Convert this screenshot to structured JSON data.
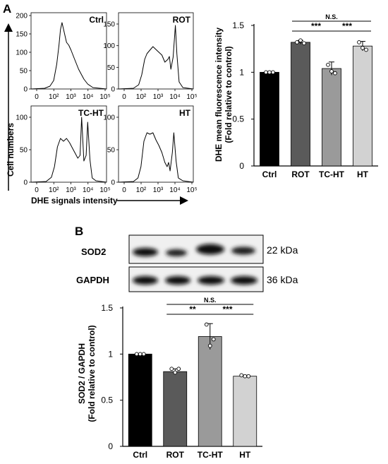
{
  "panel_a_label": "A",
  "panel_b_label": "B",
  "flow": {
    "y_axis_label": "Cell numbers",
    "x_axis_label": "DHE signals intensity",
    "x_ticks": [
      "0",
      "10²",
      "10³",
      "10⁴",
      "10⁵"
    ],
    "panels": [
      {
        "title": "Ctrl",
        "yticks": [
          "0",
          "50",
          "100",
          "150",
          "200"
        ]
      },
      {
        "title": "ROT",
        "yticks": [
          "0",
          "50",
          "100",
          "150"
        ]
      },
      {
        "title": "TC-HT",
        "yticks": [
          "0",
          "50",
          "100"
        ]
      },
      {
        "title": "HT",
        "yticks": [
          "0",
          "50",
          "100"
        ]
      }
    ]
  },
  "western": {
    "rows": [
      {
        "label": "SOD2",
        "kda": "22 kDa"
      },
      {
        "label": "GAPDH",
        "kda": "36 kDa"
      }
    ]
  },
  "chart_data": [
    {
      "type": "bar",
      "title": "",
      "ylabel": "DHE mean fluorescence intensity\n(Fold relative to control)",
      "ylabel_line1": "DHE mean fluorescence intensity",
      "ylabel_line2": "(Fold relative to control)",
      "categories": [
        "Ctrl",
        "ROT",
        "TC-HT",
        "HT"
      ],
      "values": [
        1.0,
        1.32,
        1.04,
        1.28
      ],
      "errors": [
        0.01,
        0.02,
        0.07,
        0.05
      ],
      "points": [
        [
          1.0,
          1.0,
          1.0
        ],
        [
          1.32,
          1.34,
          1.31
        ],
        [
          1.08,
          1.01,
          0.99
        ],
        [
          1.32,
          1.26,
          1.24
        ]
      ],
      "colors": [
        "#000000",
        "#5a5a5a",
        "#9a9a9a",
        "#d2d2d2"
      ],
      "ylim": [
        0,
        1.5
      ],
      "yticks": [
        "0",
        "0.5",
        "1",
        "1.5"
      ],
      "significance": [
        {
          "from": 1,
          "to": 2,
          "label": "***"
        },
        {
          "from": 2,
          "to": 3,
          "label": "***"
        },
        {
          "from": 1,
          "to": 3,
          "label": "N.S."
        }
      ]
    },
    {
      "type": "bar",
      "title": "",
      "ylabel": "SOD2 / GAPDH\n(Fold relative to control)",
      "ylabel_line1": "SOD2 / GAPDH",
      "ylabel_line2": "(Fold relative to control)",
      "categories": [
        "Ctrl",
        "ROT",
        "TC-HT",
        "HT"
      ],
      "values": [
        1.0,
        0.81,
        1.19,
        0.76
      ],
      "errors": [
        0.005,
        0.03,
        0.14,
        0.01
      ],
      "points": [
        [
          1.0,
          1.0,
          1.0
        ],
        [
          0.84,
          0.8,
          0.84
        ],
        [
          1.32,
          1.09,
          1.16
        ],
        [
          0.77,
          0.76,
          0.76
        ]
      ],
      "colors": [
        "#000000",
        "#5a5a5a",
        "#9a9a9a",
        "#d2d2d2"
      ],
      "ylim": [
        0,
        1.5
      ],
      "yticks": [
        "0",
        "0.5",
        "1",
        "1.5"
      ],
      "significance": [
        {
          "from": 1,
          "to": 2,
          "label": "**"
        },
        {
          "from": 2,
          "to": 3,
          "label": "***"
        },
        {
          "from": 1,
          "to": 3,
          "label": "N.S."
        }
      ]
    }
  ]
}
